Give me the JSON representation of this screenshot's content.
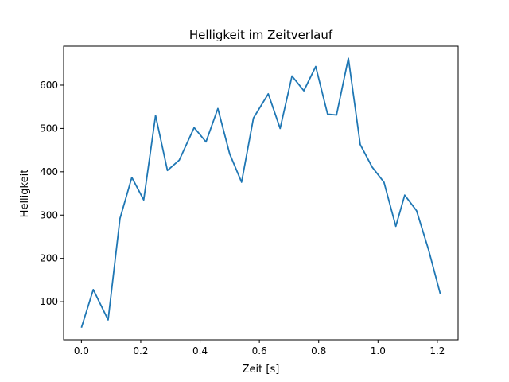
{
  "chart_data": {
    "type": "line",
    "title": "Helligkeit im Zeitverlauf",
    "xlabel": "Zeit [s]",
    "ylabel": "Helligkeit",
    "xlim": [
      -0.06,
      1.27
    ],
    "ylim": [
      12,
      690
    ],
    "xticks": [
      0.0,
      0.2,
      0.4,
      0.6,
      0.8,
      1.0,
      1.2
    ],
    "xtick_labels": [
      "0.0",
      "0.2",
      "0.4",
      "0.6",
      "0.8",
      "1.0",
      "1.2"
    ],
    "yticks": [
      100,
      200,
      300,
      400,
      500,
      600
    ],
    "ytick_labels": [
      "100",
      "200",
      "300",
      "400",
      "500",
      "600"
    ],
    "grid": false,
    "series": [
      {
        "color": "#1f77b4",
        "x": [
          0.0,
          0.04,
          0.09,
          0.13,
          0.17,
          0.21,
          0.25,
          0.29,
          0.33,
          0.38,
          0.42,
          0.46,
          0.5,
          0.54,
          0.58,
          0.63,
          0.67,
          0.71,
          0.75,
          0.79,
          0.83,
          0.86,
          0.9,
          0.94,
          0.98,
          1.02,
          1.06,
          1.09,
          1.13,
          1.17,
          1.21
        ],
        "y": [
          40,
          128,
          58,
          292,
          387,
          335,
          530,
          403,
          427,
          502,
          469,
          546,
          441,
          376,
          524,
          580,
          500,
          621,
          587,
          643,
          533,
          531,
          662,
          463,
          411,
          376,
          274,
          346,
          310,
          221,
          118
        ]
      }
    ]
  }
}
